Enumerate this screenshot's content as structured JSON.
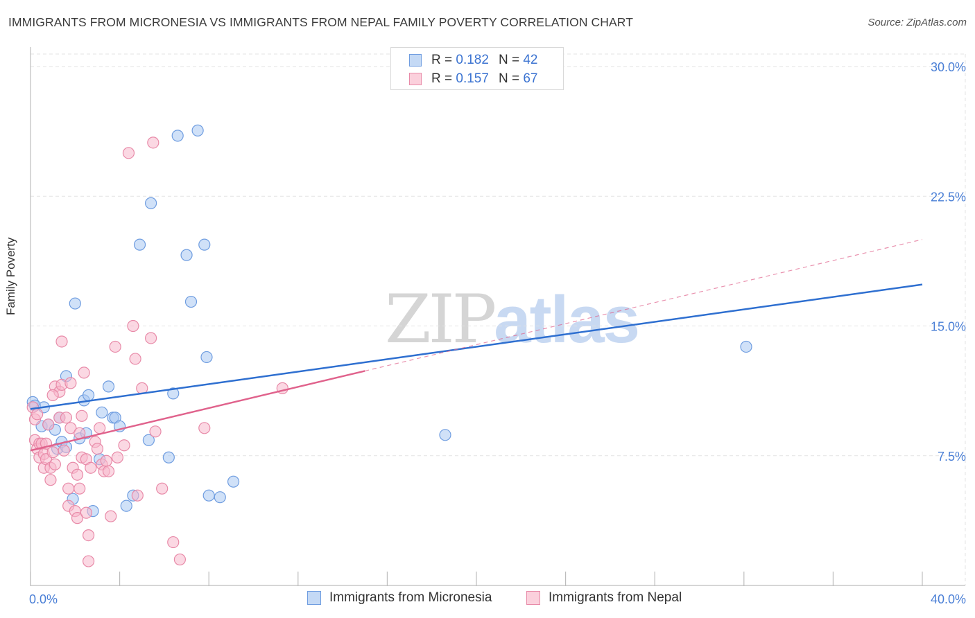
{
  "header": {
    "title": "IMMIGRANTS FROM MICRONESIA VS IMMIGRANTS FROM NEPAL FAMILY POVERTY CORRELATION CHART",
    "source": "Source: ZipAtlas.com"
  },
  "watermark": {
    "zip": "ZIP",
    "atlas": "atlas"
  },
  "legend_top": {
    "rows": [
      {
        "r_label": "R =",
        "r_value": "0.182",
        "n_label": "N =",
        "n_value": "42"
      },
      {
        "r_label": "R =",
        "r_value": "0.157",
        "n_label": "N =",
        "n_value": "67"
      }
    ]
  },
  "legend_bottom": {
    "items": [
      "Immigrants from Micronesia",
      "Immigrants from Nepal"
    ]
  },
  "colors": {
    "blue_fill": "#a9c8f2",
    "blue_stroke": "#6f9de0",
    "blue_line": "#2e6fd0",
    "pink_fill": "#f7b8cc",
    "pink_stroke": "#e88aa8",
    "pink_line": "#e0628c",
    "tick_text": "#4a7fd6",
    "grid": "#e3e3e3"
  },
  "chart_data": {
    "type": "scatter",
    "title": "IMMIGRANTS FROM MICRONESIA VS IMMIGRANTS FROM NEPAL FAMILY POVERTY CORRELATION CHART",
    "xlabel": "",
    "ylabel": "Family Poverty",
    "xlim": [
      0,
      40
    ],
    "ylim": [
      0,
      31
    ],
    "x_tick_labels": [
      {
        "value": 0,
        "label": "0.0%"
      },
      {
        "value": 40,
        "label": "40.0%"
      }
    ],
    "x_minor_ticks": [
      0,
      4,
      8,
      12,
      16,
      20,
      24,
      28,
      32,
      36,
      40
    ],
    "y_ticks": [
      {
        "value": 7.5,
        "label": "7.5%"
      },
      {
        "value": 15,
        "label": "15.0%"
      },
      {
        "value": 22.5,
        "label": "22.5%"
      },
      {
        "value": 30,
        "label": "30.0%"
      }
    ],
    "grid": true,
    "legend": "top-center",
    "series": [
      {
        "name": "Immigrants from Micronesia",
        "r": 0.182,
        "n": 42,
        "trend": {
          "x0": 0,
          "y0": 10.2,
          "x1": 40,
          "y1": 17.4,
          "dashed_to": null
        },
        "points": [
          [
            0.1,
            10.6
          ],
          [
            0.2,
            10.4
          ],
          [
            0.6,
            10.3
          ],
          [
            0.5,
            9.2
          ],
          [
            0.8,
            9.3
          ],
          [
            1.1,
            9.0
          ],
          [
            1.2,
            7.9
          ],
          [
            1.3,
            9.7
          ],
          [
            1.4,
            8.3
          ],
          [
            1.6,
            8.0
          ],
          [
            1.6,
            12.1
          ],
          [
            1.9,
            5.0
          ],
          [
            2.2,
            8.5
          ],
          [
            2.4,
            10.7
          ],
          [
            2.5,
            8.8
          ],
          [
            2.6,
            11.0
          ],
          [
            2.8,
            4.3
          ],
          [
            3.1,
            7.3
          ],
          [
            3.2,
            10.0
          ],
          [
            3.5,
            11.5
          ],
          [
            3.7,
            9.7
          ],
          [
            3.8,
            9.7
          ],
          [
            4.0,
            9.2
          ],
          [
            4.3,
            4.6
          ],
          [
            4.6,
            5.2
          ],
          [
            4.9,
            19.7
          ],
          [
            5.3,
            8.4
          ],
          [
            5.4,
            22.1
          ],
          [
            6.2,
            7.4
          ],
          [
            6.4,
            11.1
          ],
          [
            6.6,
            26.0
          ],
          [
            7.0,
            19.1
          ],
          [
            7.2,
            16.4
          ],
          [
            7.5,
            26.3
          ],
          [
            7.8,
            19.7
          ],
          [
            7.9,
            13.2
          ],
          [
            8.0,
            5.2
          ],
          [
            8.5,
            5.1
          ],
          [
            9.1,
            6.0
          ],
          [
            18.6,
            8.7
          ],
          [
            32.1,
            13.8
          ],
          [
            2.0,
            16.3
          ]
        ]
      },
      {
        "name": "Immigrants from Nepal",
        "r": 0.157,
        "n": 67,
        "trend": {
          "x0": 0,
          "y0": 7.8,
          "x1": 15.0,
          "y1": 12.4,
          "dashed_x1": 40,
          "dashed_y1": 20.0
        },
        "points": [
          [
            0.1,
            10.3
          ],
          [
            0.2,
            8.4
          ],
          [
            0.2,
            9.6
          ],
          [
            0.3,
            7.9
          ],
          [
            0.4,
            7.4
          ],
          [
            0.4,
            8.2
          ],
          [
            0.5,
            8.2
          ],
          [
            0.6,
            6.8
          ],
          [
            0.6,
            7.6
          ],
          [
            0.7,
            8.2
          ],
          [
            0.7,
            7.3
          ],
          [
            0.8,
            9.3
          ],
          [
            0.9,
            6.8
          ],
          [
            0.9,
            6.1
          ],
          [
            1.0,
            7.7
          ],
          [
            1.1,
            7.0
          ],
          [
            1.1,
            11.5
          ],
          [
            1.3,
            9.7
          ],
          [
            1.3,
            11.2
          ],
          [
            1.4,
            11.6
          ],
          [
            1.4,
            14.1
          ],
          [
            1.5,
            7.8
          ],
          [
            1.6,
            9.7
          ],
          [
            1.7,
            5.6
          ],
          [
            1.7,
            4.6
          ],
          [
            1.8,
            9.1
          ],
          [
            1.8,
            11.7
          ],
          [
            1.9,
            6.8
          ],
          [
            2.0,
            4.3
          ],
          [
            2.1,
            3.9
          ],
          [
            2.1,
            6.4
          ],
          [
            2.2,
            8.8
          ],
          [
            2.2,
            5.6
          ],
          [
            2.3,
            7.4
          ],
          [
            2.3,
            9.8
          ],
          [
            2.4,
            12.3
          ],
          [
            2.5,
            7.3
          ],
          [
            2.5,
            4.2
          ],
          [
            2.6,
            2.9
          ],
          [
            2.6,
            1.4
          ],
          [
            2.7,
            6.8
          ],
          [
            2.9,
            8.3
          ],
          [
            3.0,
            7.9
          ],
          [
            3.1,
            9.1
          ],
          [
            3.2,
            7.0
          ],
          [
            3.3,
            6.6
          ],
          [
            3.4,
            7.2
          ],
          [
            3.5,
            6.6
          ],
          [
            3.6,
            4.0
          ],
          [
            3.8,
            13.8
          ],
          [
            3.9,
            7.4
          ],
          [
            4.2,
            8.1
          ],
          [
            4.4,
            25.0
          ],
          [
            4.6,
            15.0
          ],
          [
            4.7,
            13.1
          ],
          [
            4.8,
            5.2
          ],
          [
            5.0,
            11.4
          ],
          [
            5.4,
            14.3
          ],
          [
            5.6,
            8.9
          ],
          [
            5.9,
            5.6
          ],
          [
            6.4,
            2.5
          ],
          [
            6.7,
            1.5
          ],
          [
            7.8,
            9.1
          ],
          [
            11.3,
            11.4
          ],
          [
            5.5,
            25.6
          ],
          [
            1.0,
            11.0
          ],
          [
            0.3,
            9.9
          ]
        ]
      }
    ]
  }
}
